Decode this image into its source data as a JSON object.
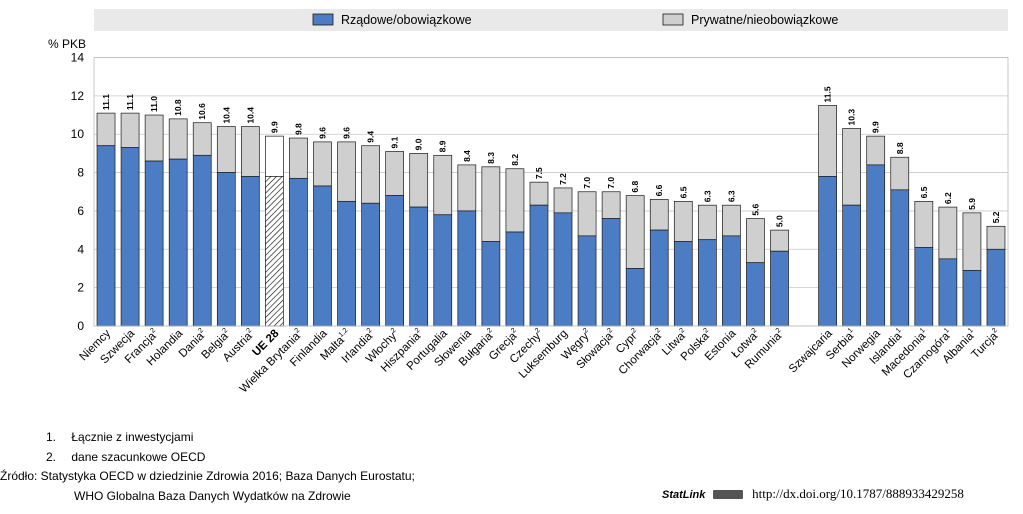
{
  "legend": {
    "items": [
      {
        "label": "Rządowe/obowiązkowe",
        "color": "#4b7cc4"
      },
      {
        "label": "Prywatne/nieobowiązkowe",
        "color": "#cfcfcf"
      }
    ]
  },
  "chart_data": {
    "type": "bar",
    "stacked": true,
    "ylabel": "% PKB",
    "ylim": [
      0,
      14
    ],
    "yticks": [
      0,
      2,
      4,
      6,
      8,
      10,
      12,
      14
    ],
    "grid": true,
    "series": [
      {
        "name": "Rządowe/obowiązkowe",
        "color": "#4b7cc4"
      },
      {
        "name": "Prywatne/nieobowiązkowe",
        "color": "#cfcfcf"
      }
    ],
    "categories": [
      {
        "name": "Niemcy",
        "sup": "",
        "gov": 9.4,
        "total": 11.1,
        "label": "11.1"
      },
      {
        "name": "Szwecja",
        "sup": "",
        "gov": 9.3,
        "total": 11.1,
        "label": "11.1"
      },
      {
        "name": "Francja",
        "sup": "2",
        "gov": 8.6,
        "total": 11.0,
        "label": "11.0"
      },
      {
        "name": "Holandia",
        "sup": "",
        "gov": 8.7,
        "total": 10.8,
        "label": "10.8"
      },
      {
        "name": "Dania",
        "sup": "2",
        "gov": 8.9,
        "total": 10.6,
        "label": "10.6"
      },
      {
        "name": "Belgia",
        "sup": "2",
        "gov": 8.0,
        "total": 10.4,
        "label": "10.4"
      },
      {
        "name": "Austria",
        "sup": "2",
        "gov": 7.8,
        "total": 10.4,
        "label": "10.4"
      },
      {
        "name": "UE 28",
        "sup": "",
        "gov": 7.8,
        "total": 9.9,
        "label": "9.9",
        "highlight": true
      },
      {
        "name": "Wielka Brytania",
        "sup": "2",
        "gov": 7.7,
        "total": 9.8,
        "label": "9.8"
      },
      {
        "name": "Finlandia",
        "sup": "",
        "gov": 7.3,
        "total": 9.6,
        "label": "9.6"
      },
      {
        "name": "Malta",
        "sup": "1,2",
        "gov": 6.5,
        "total": 9.6,
        "label": "9.6"
      },
      {
        "name": "Irlandia",
        "sup": "2",
        "gov": 6.4,
        "total": 9.4,
        "label": "9.4"
      },
      {
        "name": "Włochy",
        "sup": "2",
        "gov": 6.8,
        "total": 9.1,
        "label": "9.1"
      },
      {
        "name": "Hiszpania",
        "sup": "2",
        "gov": 6.2,
        "total": 9.0,
        "label": "9.0"
      },
      {
        "name": "Portugalia",
        "sup": "",
        "gov": 5.8,
        "total": 8.9,
        "label": "8.9"
      },
      {
        "name": "Słowenia",
        "sup": "",
        "gov": 6.0,
        "total": 8.4,
        "label": "8.4"
      },
      {
        "name": "Bułgaria",
        "sup": "2",
        "gov": 4.4,
        "total": 8.3,
        "label": "8.3"
      },
      {
        "name": "Grecja",
        "sup": "2",
        "gov": 4.9,
        "total": 8.2,
        "label": "8.2"
      },
      {
        "name": "Czechy",
        "sup": "2",
        "gov": 6.3,
        "total": 7.5,
        "label": "7.5"
      },
      {
        "name": "Luksemburg",
        "sup": "",
        "gov": 5.9,
        "total": 7.2,
        "label": "7.2"
      },
      {
        "name": "Węgry",
        "sup": "2",
        "gov": 4.7,
        "total": 7.0,
        "label": "7.0"
      },
      {
        "name": "Słowacja",
        "sup": "2",
        "gov": 5.6,
        "total": 7.0,
        "label": "7.0"
      },
      {
        "name": "Cypr",
        "sup": "2",
        "gov": 3.0,
        "total": 6.8,
        "label": "6.8"
      },
      {
        "name": "Chorwacja",
        "sup": "2",
        "gov": 5.0,
        "total": 6.6,
        "label": "6.6"
      },
      {
        "name": "Litwa",
        "sup": "2",
        "gov": 4.4,
        "total": 6.5,
        "label": "6.5"
      },
      {
        "name": "Polska",
        "sup": "2",
        "gov": 4.5,
        "total": 6.3,
        "label": "6.3"
      },
      {
        "name": "Estonia",
        "sup": "",
        "gov": 4.7,
        "total": 6.3,
        "label": "6.3"
      },
      {
        "name": "Łotwa",
        "sup": "2",
        "gov": 3.3,
        "total": 5.6,
        "label": "5.6"
      },
      {
        "name": "Rumunia",
        "sup": "2",
        "gov": 3.9,
        "total": 5.0,
        "label": "5.0"
      },
      {
        "gap": true
      },
      {
        "name": "Szwajcaria",
        "sup": "",
        "gov": 7.8,
        "total": 11.5,
        "label": "11.5"
      },
      {
        "name": "Serbia",
        "sup": "1",
        "gov": 6.3,
        "total": 10.3,
        "label": "10.3"
      },
      {
        "name": "Norwegia",
        "sup": "",
        "gov": 8.4,
        "total": 9.9,
        "label": "9.9"
      },
      {
        "name": "Islandia",
        "sup": "1",
        "gov": 7.1,
        "total": 8.8,
        "label": "8.8"
      },
      {
        "name": "Macedonia",
        "sup": "1",
        "gov": 4.1,
        "total": 6.5,
        "label": "6.5"
      },
      {
        "name": "Czarnogóra",
        "sup": "1",
        "gov": 3.5,
        "total": 6.2,
        "label": "6.2"
      },
      {
        "name": "Albania",
        "sup": "1",
        "gov": 2.9,
        "total": 5.9,
        "label": "5.9"
      },
      {
        "name": "Turcja",
        "sup": "2",
        "gov": 4.0,
        "total": 5.2,
        "label": "5.2"
      }
    ]
  },
  "footnotes": {
    "n1_num": "1.",
    "n1_text": "Łącznie z inwestycjami",
    "n2_num": "2.",
    "n2_text": "dane szacunkowe OECD",
    "source_line1": "Źródło: Statystyka OECD w dziedzinie Zdrowia 2016; Baza Danych Eurostatu;",
    "source_line2": "WHO Globalna Baza Danych Wydatków na Zdrowie"
  },
  "statlink": {
    "brand": "StatLink",
    "url": "http://dx.doi.org/10.1787/888933429258"
  }
}
